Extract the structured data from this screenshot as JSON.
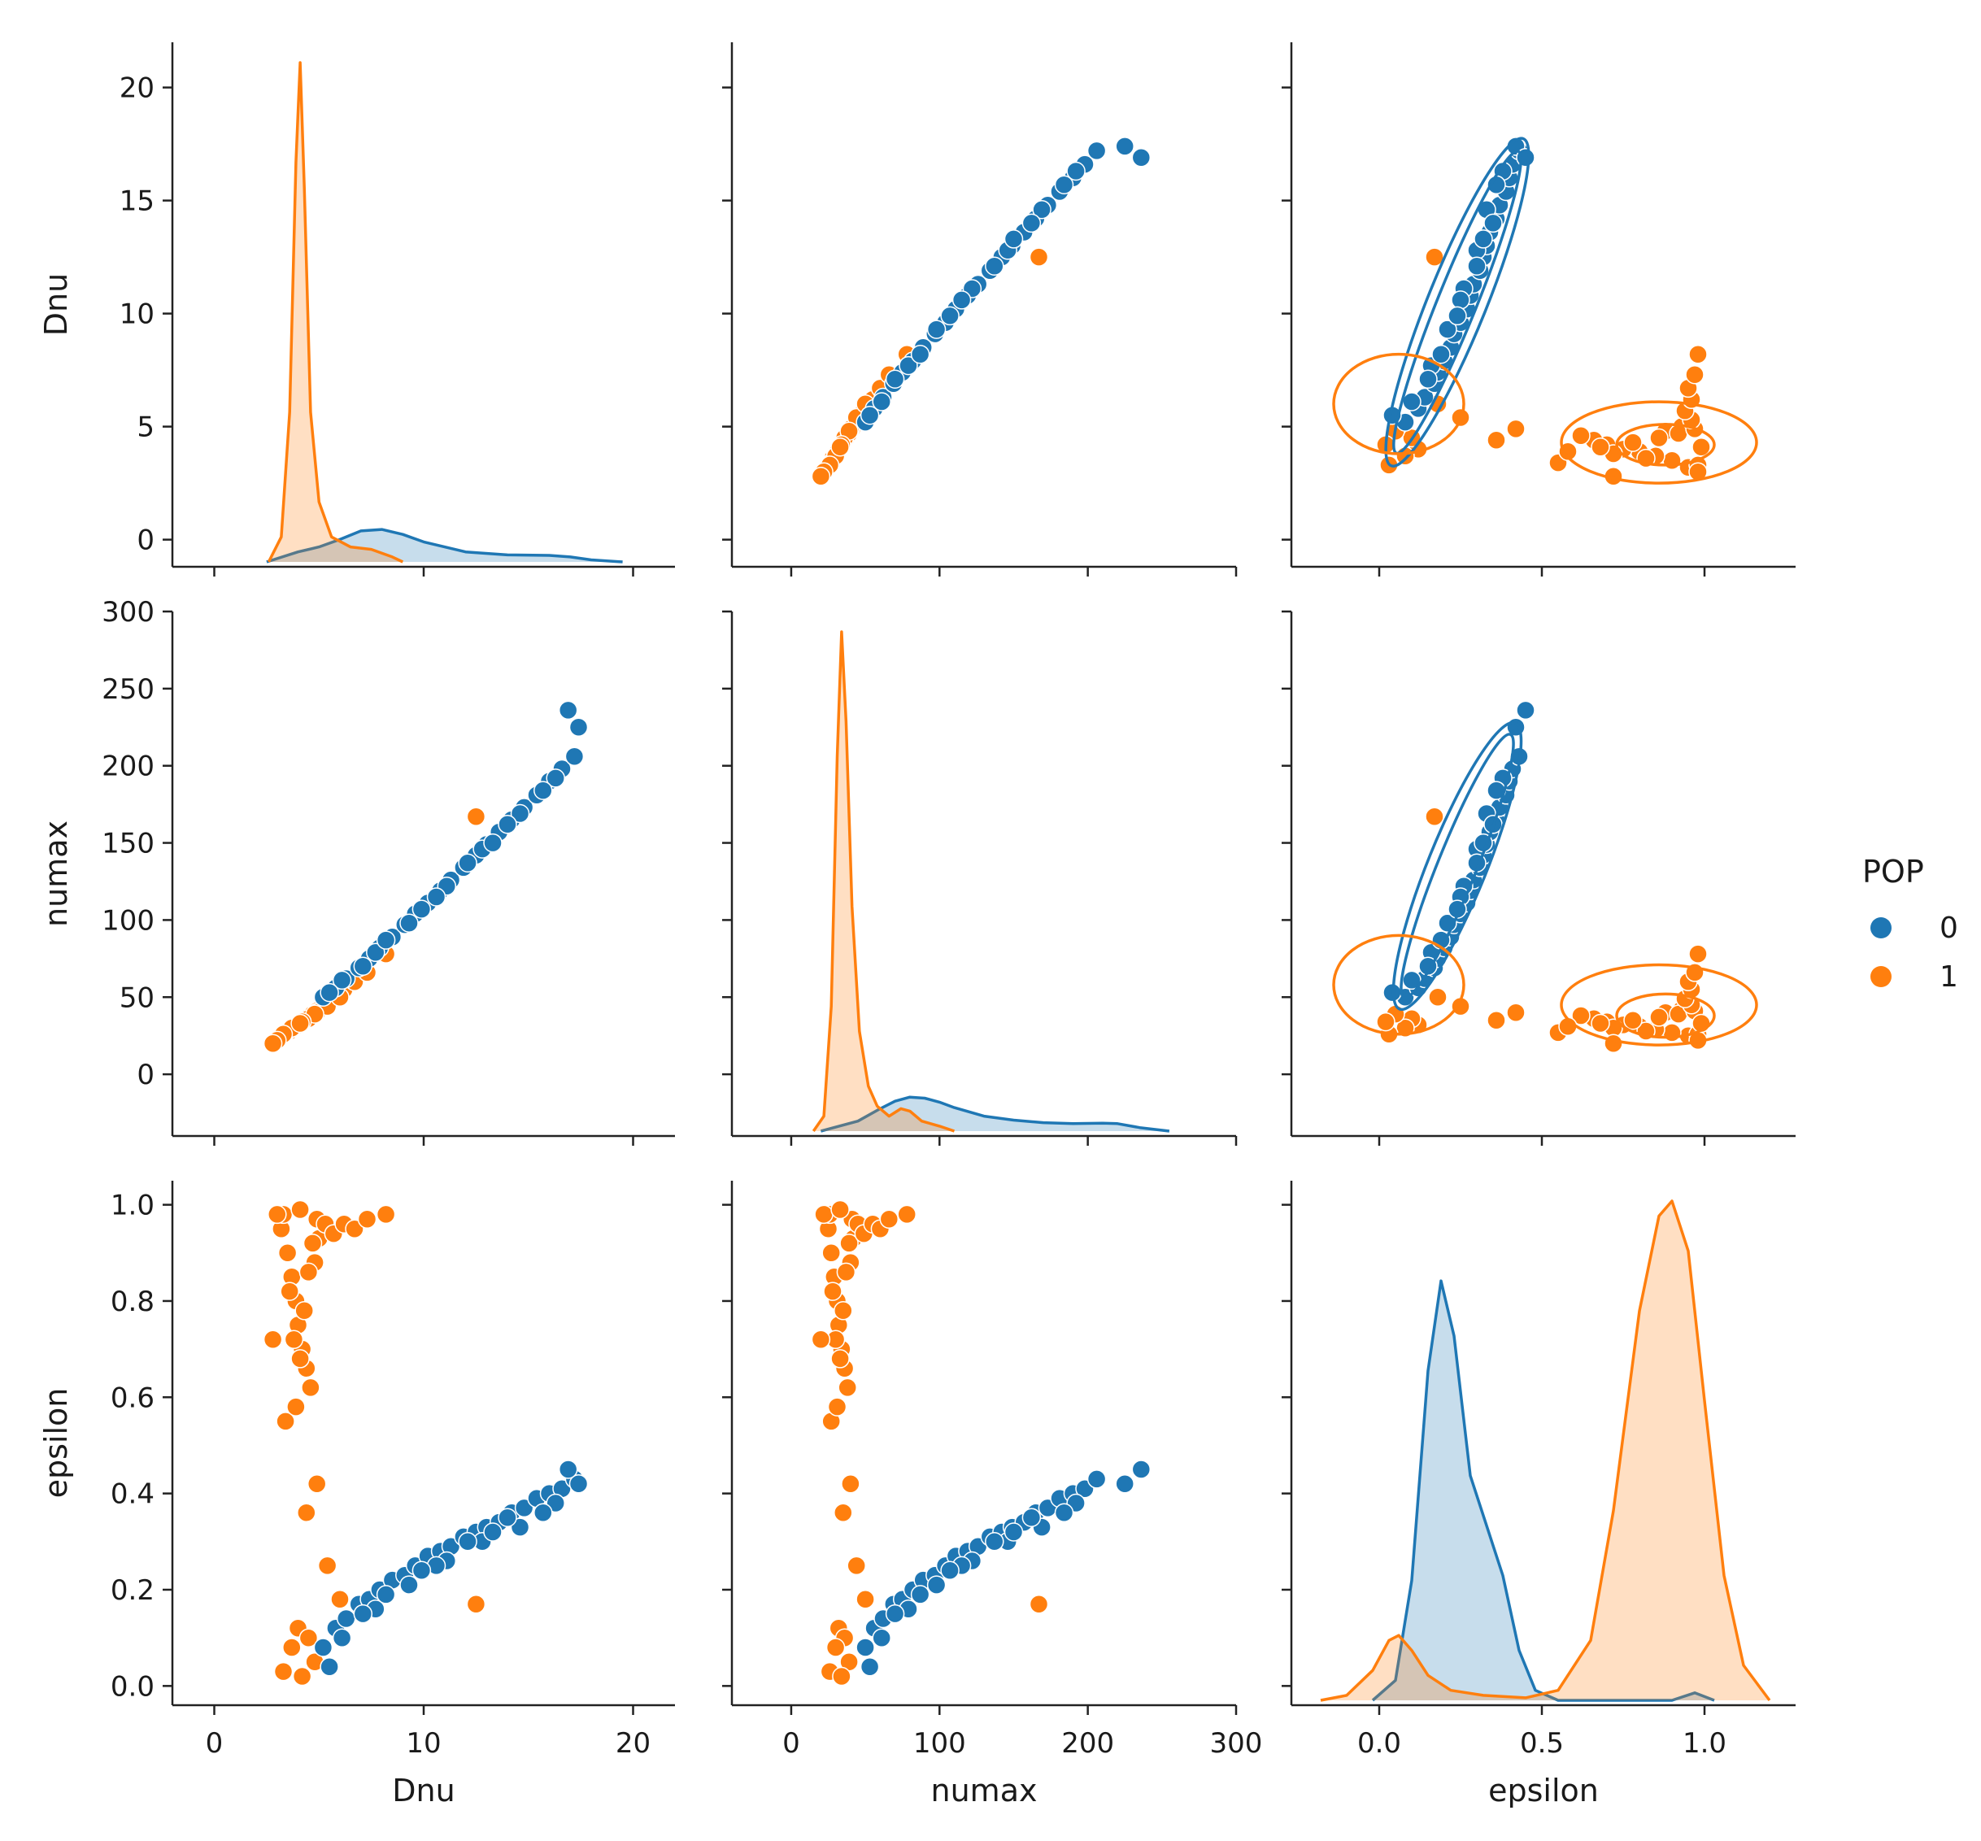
{
  "chart_data": {
    "type": "pairplot",
    "variables": [
      "Dnu",
      "numax",
      "epsilon"
    ],
    "hue": "POP",
    "legend": {
      "title": "POP",
      "placement": "center-right",
      "entries": [
        {
          "label": "0",
          "color": "#1f77b4"
        },
        {
          "label": "1",
          "color": "#ff7f0e"
        }
      ]
    },
    "axes": {
      "Dnu": {
        "label": "Dnu",
        "range": [
          -1.2,
          22
        ],
        "ticks": [
          0,
          5,
          10,
          15,
          20
        ],
        "x_ticks": [
          0,
          10,
          20
        ],
        "x_range": [
          -2,
          22
        ]
      },
      "numax": {
        "label": "numax",
        "range": [
          -40,
          300
        ],
        "ticks": [
          0,
          50,
          100,
          150,
          200,
          250,
          300
        ],
        "x_ticks": [
          0,
          100,
          200,
          300
        ],
        "x_range": [
          -40,
          300
        ]
      },
      "epsilon": {
        "label": "epsilon",
        "range": [
          -0.04,
          1.05
        ],
        "ticks": [
          0.0,
          0.2,
          0.4,
          0.6,
          0.8,
          1.0
        ],
        "x_ticks": [
          0.0,
          0.5,
          1.0
        ],
        "x_range": [
          -0.27,
          1.28
        ]
      }
    },
    "kde": {
      "Dnu": {
        "0": {
          "x": [
            2.5,
            4,
            5,
            6,
            7,
            8,
            9,
            10,
            12,
            14,
            16,
            17,
            18,
            19.5
          ],
          "y": [
            0.0,
            0.02,
            0.03,
            0.045,
            0.062,
            0.065,
            0.055,
            0.04,
            0.02,
            0.014,
            0.013,
            0.01,
            0.004,
            0.0
          ]
        },
        "1": {
          "x": [
            2.6,
            3.2,
            3.6,
            3.9,
            4.1,
            4.3,
            4.6,
            5.0,
            5.6,
            6.5,
            7.5,
            8.5,
            9.0
          ],
          "y": [
            0.0,
            0.05,
            0.3,
            0.8,
            1.0,
            0.75,
            0.3,
            0.12,
            0.05,
            0.03,
            0.025,
            0.01,
            0.0
          ]
        }
      },
      "numax": {
        "0": {
          "x": [
            20,
            45,
            60,
            70,
            80,
            90,
            100,
            110,
            130,
            150,
            170,
            190,
            210,
            220,
            235,
            255
          ],
          "y": [
            0.0,
            0.02,
            0.045,
            0.06,
            0.068,
            0.066,
            0.058,
            0.047,
            0.03,
            0.022,
            0.017,
            0.015,
            0.016,
            0.015,
            0.007,
            0.0
          ]
        },
        "1": {
          "x": [
            15,
            22,
            27,
            31,
            34,
            37,
            41,
            46,
            52,
            58,
            66,
            74,
            80,
            88,
            100,
            110
          ],
          "y": [
            0.0,
            0.03,
            0.25,
            0.75,
            1.0,
            0.82,
            0.45,
            0.2,
            0.09,
            0.05,
            0.03,
            0.045,
            0.04,
            0.02,
            0.01,
            0.0
          ]
        }
      },
      "epsilon": {
        "0": {
          "x": [
            -0.02,
            0.05,
            0.1,
            0.15,
            0.19,
            0.23,
            0.28,
            0.33,
            0.38,
            0.43,
            0.48,
            0.55,
            0.9,
            0.97,
            1.03
          ],
          "y": [
            0.0,
            0.04,
            0.24,
            0.66,
            0.84,
            0.73,
            0.45,
            0.35,
            0.25,
            0.1,
            0.02,
            0.0,
            0.0,
            0.015,
            0.0
          ]
        },
        "1": {
          "x": [
            -0.18,
            -0.1,
            -0.02,
            0.03,
            0.06,
            0.1,
            0.15,
            0.22,
            0.32,
            0.45,
            0.55,
            0.65,
            0.72,
            0.8,
            0.86,
            0.9,
            0.95,
            1.0,
            1.06,
            1.12,
            1.2
          ],
          "y": [
            0.0,
            0.01,
            0.06,
            0.12,
            0.13,
            0.1,
            0.05,
            0.02,
            0.01,
            0.005,
            0.02,
            0.12,
            0.38,
            0.78,
            0.97,
            1.0,
            0.9,
            0.6,
            0.25,
            0.07,
            0.0
          ]
        }
      }
    },
    "scatter": {
      "0": {
        "Dnu": [
          5.2,
          5.8,
          6.3,
          6.9,
          7.4,
          7.9,
          8.5,
          9.1,
          9.6,
          10.2,
          10.8,
          11.3,
          11.9,
          12.5,
          13.0,
          13.6,
          14.2,
          14.8,
          15.4,
          16.0,
          16.6,
          17.2,
          6.1,
          7.7,
          9.3,
          11.1,
          12.8,
          14.6,
          16.3,
          8.2,
          10.6,
          13.3,
          15.7,
          17.4,
          5.5,
          7.1,
          9.9,
          12.1,
          14.0,
          16.9
        ],
        "numax": [
          50,
          56,
          62,
          69,
          75,
          82,
          89,
          97,
          104,
          111,
          119,
          126,
          134,
          142,
          149,
          157,
          165,
          173,
          181,
          190,
          198,
          206,
          61,
          79,
          98,
          122,
          146,
          169,
          192,
          87,
          115,
          150,
          184,
          225,
          53,
          70,
          107,
          137,
          162,
          236
        ],
        "epsilon": [
          0.08,
          0.12,
          0.14,
          0.17,
          0.18,
          0.2,
          0.22,
          0.23,
          0.25,
          0.27,
          0.28,
          0.29,
          0.31,
          0.32,
          0.33,
          0.34,
          0.36,
          0.37,
          0.39,
          0.4,
          0.41,
          0.43,
          0.1,
          0.16,
          0.21,
          0.26,
          0.3,
          0.33,
          0.38,
          0.19,
          0.25,
          0.32,
          0.36,
          0.42,
          0.04,
          0.15,
          0.24,
          0.3,
          0.35,
          0.45
        ]
      },
      "1": {
        "Dnu": [
          3.2,
          3.5,
          3.7,
          3.9,
          4.0,
          4.2,
          4.4,
          4.6,
          4.8,
          5.0,
          3.3,
          3.6,
          3.8,
          4.1,
          4.3,
          4.5,
          4.7,
          4.9,
          5.3,
          5.7,
          6.2,
          6.7,
          7.3,
          8.2,
          3.4,
          3.9,
          4.4,
          4.9,
          5.4,
          6.0,
          4.0,
          4.5,
          3.7,
          4.8,
          3.3,
          4.2,
          12.5,
          3.0,
          2.8,
          4.1
        ],
        "numax": [
          25,
          27,
          29,
          31,
          32,
          34,
          36,
          38,
          40,
          42,
          26,
          28,
          30,
          33,
          35,
          37,
          39,
          41,
          45,
          49,
          55,
          60,
          66,
          78,
          27,
          31,
          35,
          40,
          44,
          50,
          32,
          36,
          30,
          39,
          26,
          34,
          167,
          22,
          20,
          33
        ],
        "epsilon": [
          0.95,
          0.9,
          0.85,
          0.8,
          0.75,
          0.7,
          0.66,
          0.62,
          0.88,
          0.93,
          0.98,
          0.82,
          0.72,
          0.68,
          0.78,
          0.86,
          0.92,
          0.97,
          0.96,
          0.94,
          0.96,
          0.95,
          0.97,
          0.98,
          0.55,
          0.58,
          0.36,
          0.42,
          0.25,
          0.18,
          0.12,
          0.1,
          0.08,
          0.05,
          0.03,
          0.02,
          0.17,
          0.98,
          0.72,
          0.99
        ]
      }
    }
  }
}
